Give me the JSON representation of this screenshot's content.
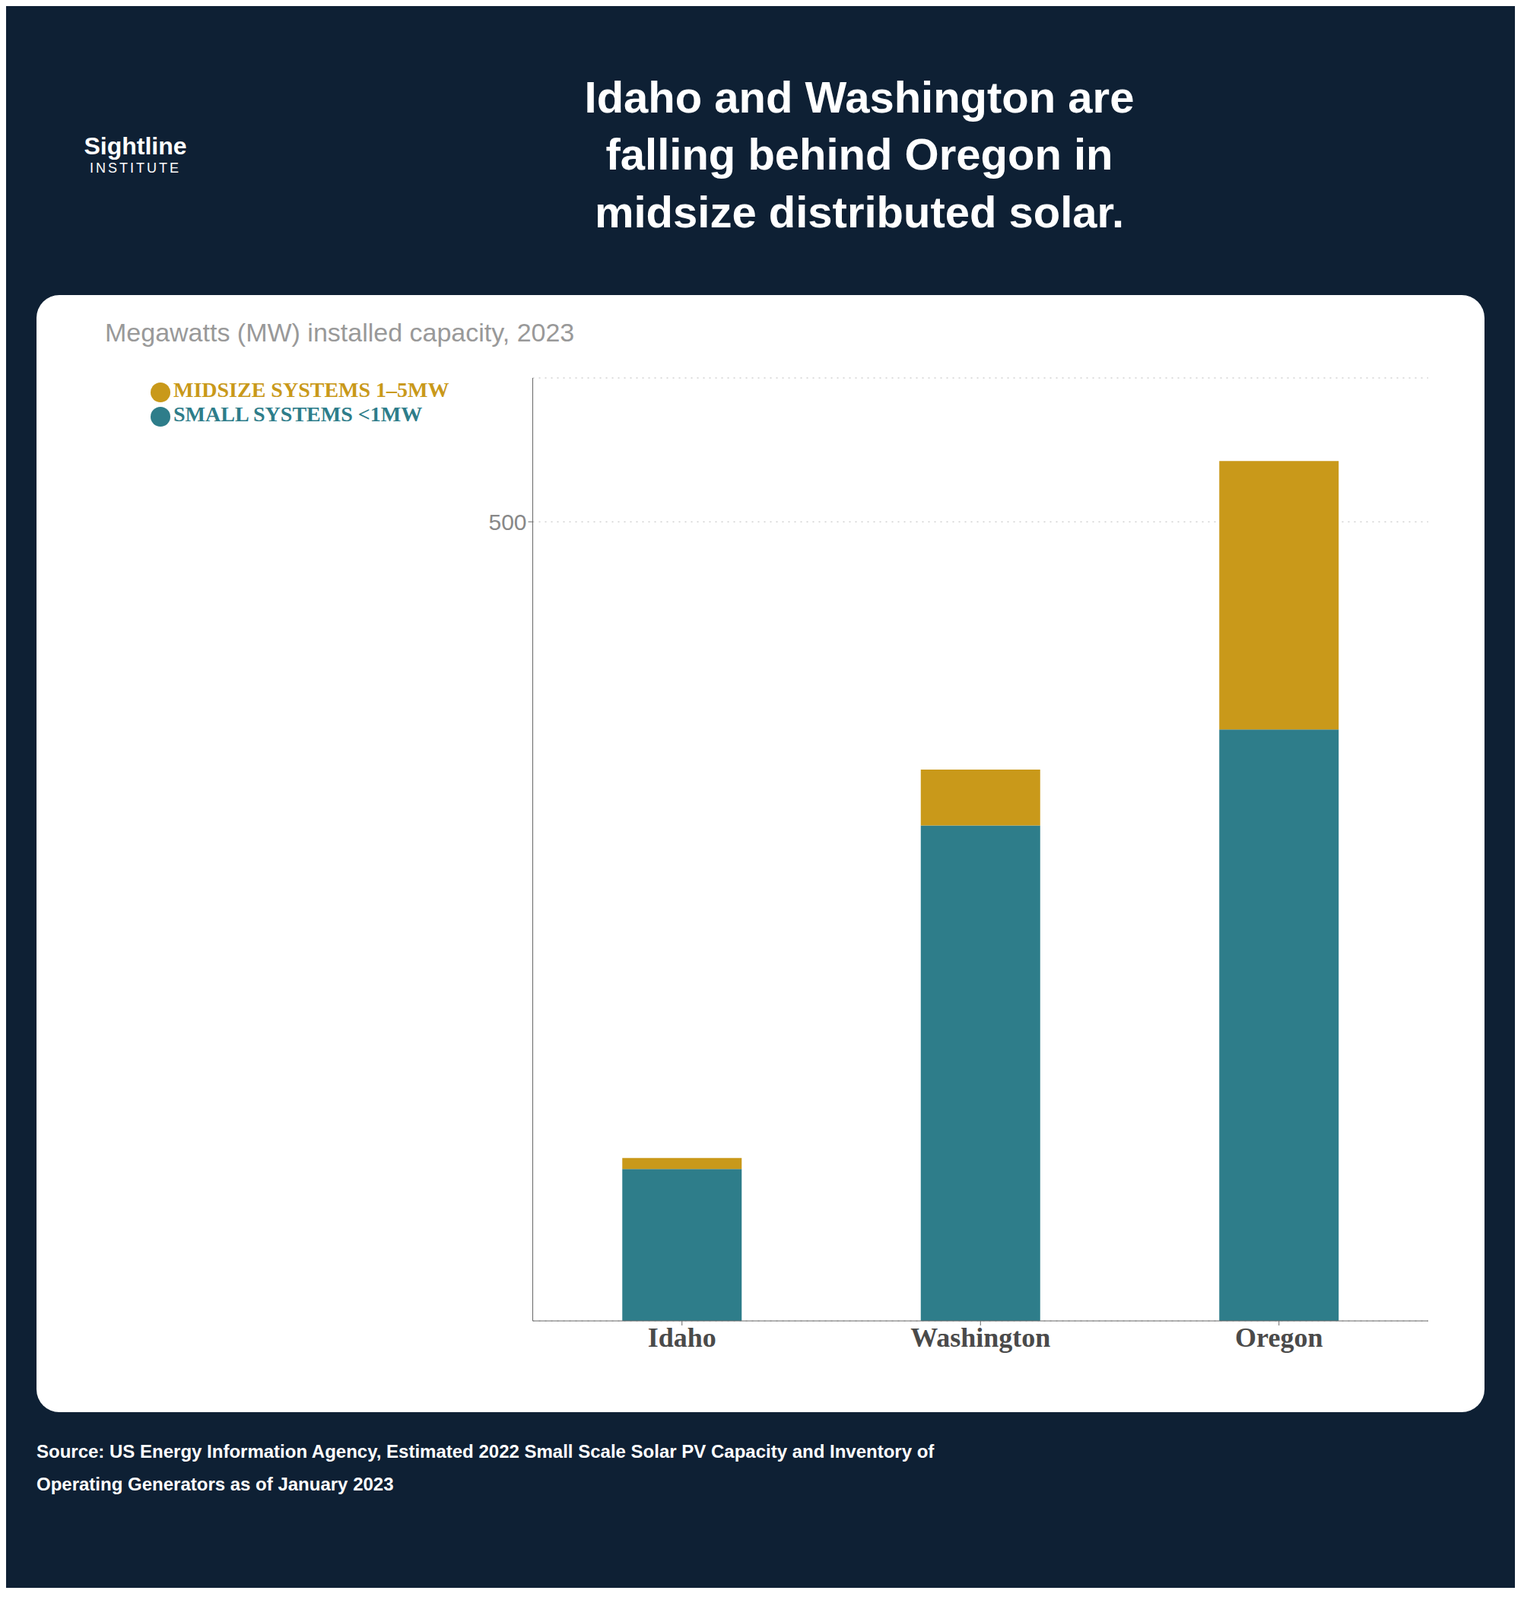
{
  "chart_data": {
    "type": "bar",
    "stacked": true,
    "title": "Idaho and Washington are\nfalling behind Oregon in\nmidsize distributed solar.",
    "subtitle": "Megawatts (MW) installed capacity, 2023",
    "annotations": [
      "Sightline",
      "INSTITUTE",
      "Source: US Energy Information Agency, Estimated 2022 Small Scale Solar PV Capacity and Inventory of\nOperating Generators as of January 2023"
    ],
    "categories": [
      "Idaho",
      "Washington",
      "Oregon"
    ],
    "series": [
      {
        "name": "SMALL SYSTEMS <1MW",
        "color": "#2e7d8a",
        "values": [
          95,
          310,
          370
        ]
      },
      {
        "name": "MIDSIZE SYSTEMS 1–5MW",
        "color": "#c9991a",
        "values": [
          7,
          35,
          168
        ]
      }
    ],
    "ylim": [
      0,
      590
    ],
    "yticks": [
      500
    ],
    "grid": true,
    "legend": "top-left"
  }
}
